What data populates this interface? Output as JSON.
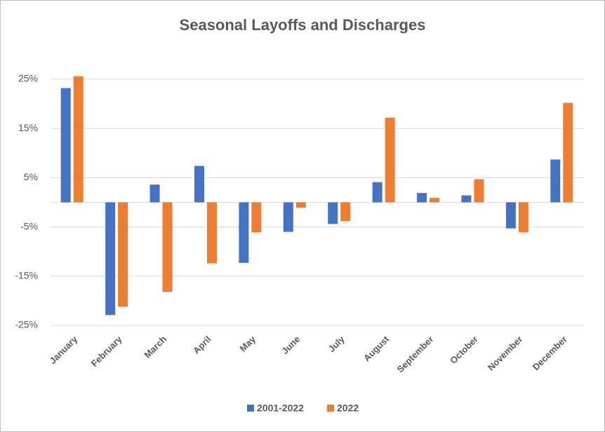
{
  "chart_data": {
    "type": "bar",
    "title": "Seasonal Layoffs and Discharges",
    "categories": [
      "January",
      "February",
      "March",
      "April",
      "May",
      "June",
      "July",
      "August",
      "September",
      "October",
      "November",
      "December"
    ],
    "series": [
      {
        "name": "2001-2022",
        "color": "#4472c4",
        "values": [
          23.2,
          -22.9,
          3.6,
          7.4,
          -12.3,
          -6.0,
          -4.4,
          4.1,
          1.9,
          1.4,
          -5.3,
          8.7
        ]
      },
      {
        "name": "2022",
        "color": "#ed7d31",
        "values": [
          25.6,
          -21.2,
          -18.2,
          -12.4,
          -6.1,
          -1.1,
          -3.8,
          17.2,
          0.9,
          4.7,
          -6.1,
          20.2
        ]
      }
    ],
    "ylim": [
      -25,
      27
    ],
    "yticks": [
      {
        "value": 25,
        "label": "25%"
      },
      {
        "value": 15,
        "label": "15%"
      },
      {
        "value": 5,
        "label": "5%"
      },
      {
        "value": -5,
        "label": "-5%"
      },
      {
        "value": -15,
        "label": "-15%"
      },
      {
        "value": -25,
        "label": "-25%"
      }
    ],
    "grid": true,
    "legend": "bottom"
  }
}
